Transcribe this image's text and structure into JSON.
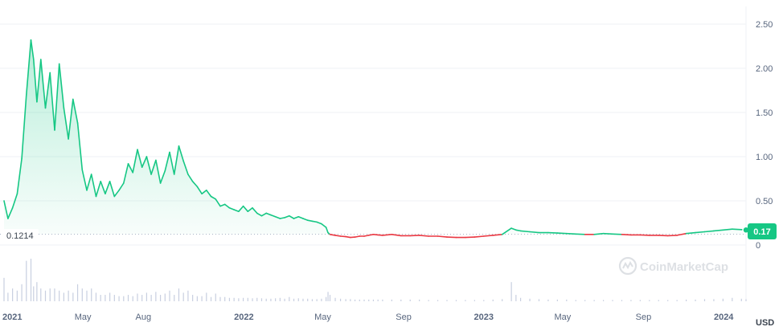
{
  "watermark": {
    "text": "CoinMarketCap"
  },
  "currency_label": "USD",
  "chart_data": {
    "type": "area",
    "title": "",
    "xlabel": "",
    "ylabel": "",
    "x_ticks": [
      "2021",
      "May",
      "Aug",
      "2022",
      "May",
      "Sep",
      "2023",
      "May",
      "Sep",
      "2024"
    ],
    "y_ticks": [
      "2.50",
      "2.00",
      "1.50",
      "1.00",
      "0.50",
      "0"
    ],
    "ylim": [
      0,
      2.5
    ],
    "baseline": {
      "value": 0.1214,
      "label": "0.1214"
    },
    "current_price": {
      "value": 0.17,
      "label": "0.17"
    },
    "colors": {
      "above_baseline": "#16c784",
      "below_baseline": "#ea3943"
    },
    "grid": true,
    "series": [
      {
        "x": [
          "2021-01-01",
          "2021-01-07",
          "2021-01-14",
          "2021-01-21",
          "2021-01-28",
          "2021-02-04",
          "2021-02-11",
          "2021-02-15",
          "2021-02-20",
          "2021-02-26",
          "2021-03-05",
          "2021-03-12",
          "2021-03-19",
          "2021-03-26",
          "2021-04-02",
          "2021-04-09",
          "2021-04-16",
          "2021-04-23",
          "2021-04-30",
          "2021-05-07",
          "2021-05-14",
          "2021-05-21",
          "2021-05-28",
          "2021-06-04",
          "2021-06-11",
          "2021-06-18",
          "2021-06-25",
          "2021-07-02",
          "2021-07-09",
          "2021-07-16",
          "2021-07-23",
          "2021-07-30",
          "2021-08-06",
          "2021-08-13",
          "2021-08-20",
          "2021-08-27",
          "2021-09-03",
          "2021-09-10",
          "2021-09-17",
          "2021-09-24",
          "2021-10-01",
          "2021-10-08",
          "2021-10-15",
          "2021-10-22",
          "2021-10-29",
          "2021-11-05",
          "2021-11-12",
          "2021-11-19",
          "2021-11-26",
          "2021-12-03",
          "2021-12-10",
          "2021-12-17",
          "2021-12-24",
          "2021-12-31",
          "2022-01-07",
          "2022-01-14",
          "2022-01-21",
          "2022-01-28",
          "2022-02-04",
          "2022-02-11",
          "2022-02-18",
          "2022-02-25",
          "2022-03-04",
          "2022-03-11",
          "2022-03-18",
          "2022-03-25",
          "2022-04-01",
          "2022-04-08",
          "2022-04-15",
          "2022-04-22",
          "2022-04-29",
          "2022-05-06",
          "2022-05-09",
          "2022-05-12",
          "2022-05-20",
          "2022-05-28",
          "2022-06-05",
          "2022-06-12",
          "2022-06-19",
          "2022-06-26",
          "2022-07-03",
          "2022-07-10",
          "2022-07-17",
          "2022-07-24",
          "2022-07-31",
          "2022-08-14",
          "2022-08-28",
          "2022-09-11",
          "2022-09-25",
          "2022-10-09",
          "2022-10-23",
          "2022-11-06",
          "2022-11-20",
          "2022-12-04",
          "2022-12-18",
          "2023-01-01",
          "2023-01-15",
          "2023-01-29",
          "2023-02-12",
          "2023-02-19",
          "2023-02-26",
          "2023-03-12",
          "2023-03-26",
          "2023-04-09",
          "2023-04-23",
          "2023-05-07",
          "2023-05-21",
          "2023-06-04",
          "2023-06-18",
          "2023-07-02",
          "2023-07-16",
          "2023-07-30",
          "2023-08-13",
          "2023-08-27",
          "2023-09-10",
          "2023-09-24",
          "2023-10-08",
          "2023-10-22",
          "2023-11-05",
          "2023-11-19",
          "2023-12-03",
          "2023-12-17",
          "2023-12-31",
          "2024-01-14",
          "2024-01-28",
          "2024-02-04"
        ],
        "values": [
          0.5,
          0.3,
          0.42,
          0.58,
          0.98,
          1.7,
          2.32,
          2.1,
          1.62,
          2.1,
          1.55,
          1.95,
          1.3,
          2.05,
          1.55,
          1.2,
          1.65,
          1.38,
          0.85,
          0.62,
          0.8,
          0.55,
          0.72,
          0.58,
          0.72,
          0.55,
          0.62,
          0.7,
          0.92,
          0.82,
          1.08,
          0.88,
          1.0,
          0.8,
          0.96,
          0.7,
          0.84,
          1.05,
          0.8,
          1.12,
          0.95,
          0.8,
          0.72,
          0.66,
          0.58,
          0.62,
          0.55,
          0.52,
          0.44,
          0.46,
          0.42,
          0.4,
          0.38,
          0.44,
          0.38,
          0.42,
          0.36,
          0.33,
          0.36,
          0.34,
          0.32,
          0.3,
          0.31,
          0.33,
          0.3,
          0.32,
          0.3,
          0.28,
          0.27,
          0.26,
          0.24,
          0.2,
          0.14,
          0.12,
          0.11,
          0.1,
          0.095,
          0.085,
          0.09,
          0.1,
          0.1,
          0.11,
          0.12,
          0.115,
          0.11,
          0.12,
          0.105,
          0.105,
          0.11,
          0.1,
          0.1,
          0.09,
          0.085,
          0.085,
          0.09,
          0.1,
          0.11,
          0.12,
          0.19,
          0.17,
          0.16,
          0.15,
          0.14,
          0.14,
          0.135,
          0.13,
          0.125,
          0.12,
          0.12,
          0.13,
          0.125,
          0.12,
          0.115,
          0.115,
          0.11,
          0.11,
          0.105,
          0.11,
          0.13,
          0.14,
          0.15,
          0.16,
          0.17,
          0.18,
          0.175,
          0.17
        ]
      }
    ],
    "volume": [
      0.55,
      0.2,
      0.3,
      0.25,
      0.4,
      0.95,
      1.0,
      0.35,
      0.45,
      0.3,
      0.25,
      0.3,
      0.3,
      0.25,
      0.2,
      0.25,
      0.2,
      0.4,
      0.3,
      0.25,
      0.3,
      0.2,
      0.15,
      0.15,
      0.2,
      0.15,
      0.12,
      0.12,
      0.15,
      0.12,
      0.18,
      0.15,
      0.2,
      0.15,
      0.22,
      0.15,
      0.18,
      0.25,
      0.15,
      0.3,
      0.2,
      0.25,
      0.15,
      0.12,
      0.12,
      0.2,
      0.1,
      0.18,
      0.1,
      0.1,
      0.08,
      0.08,
      0.07,
      0.08,
      0.08,
      0.07,
      0.08,
      0.07,
      0.06,
      0.06,
      0.07,
      0.08,
      0.06,
      0.1,
      0.06,
      0.07,
      0.06,
      0.06,
      0.05,
      0.05,
      0.06,
      0.1,
      0.22,
      0.15,
      0.08,
      0.06,
      0.05,
      0.05,
      0.04,
      0.04,
      0.04,
      0.04,
      0.04,
      0.04,
      0.04,
      0.04,
      0.04,
      0.04,
      0.04,
      0.03,
      0.03,
      0.03,
      0.03,
      0.03,
      0.03,
      0.03,
      0.04,
      0.05,
      0.45,
      0.15,
      0.08,
      0.06,
      0.05,
      0.04,
      0.04,
      0.04,
      0.03,
      0.03,
      0.03,
      0.03,
      0.03,
      0.03,
      0.03,
      0.03,
      0.03,
      0.03,
      0.03,
      0.03,
      0.04,
      0.04,
      0.05,
      0.05,
      0.06,
      0.08,
      0.06,
      0.05
    ]
  }
}
